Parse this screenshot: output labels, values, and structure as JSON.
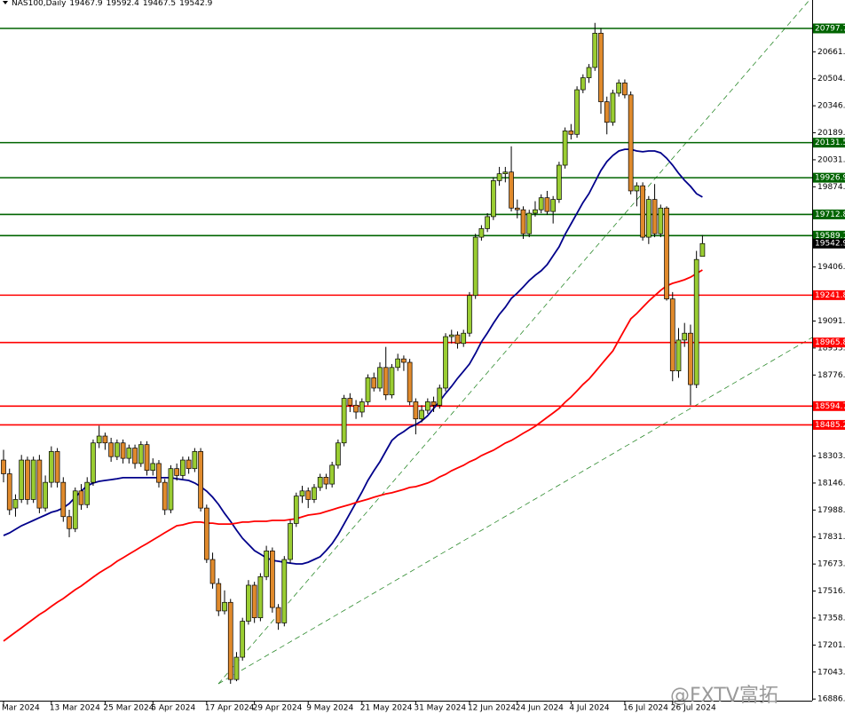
{
  "chart_data": {
    "type": "candlestick",
    "symbol": "NAS100,Daily",
    "watermark": "@FXTV富拓",
    "up_color": "#9acd32",
    "down_color": "#e08a2c",
    "ylim": [
      16876.5,
      20963.5
    ],
    "yticks": [
      {
        "value": 16886,
        "label": "16886.0"
      },
      17043.5,
      {
        "value": 17201,
        "label": "17201.0"
      },
      17358.5,
      {
        "value": 17516,
        "label": "17516.0"
      },
      17673.5,
      {
        "value": 17831,
        "label": "17831.0"
      },
      17988.5,
      {
        "value": 18146,
        "label": "18146.0"
      },
      18303.5,
      {
        "value": 18776,
        "label": "18776.0"
      },
      18933.5,
      {
        "value": 19091,
        "label": "19091.0"
      },
      {
        "value": 19406,
        "label": "19406.0"
      },
      {
        "value": 19874,
        "label": "19874.0"
      },
      20031.5,
      {
        "value": 20189,
        "label": "20189.0"
      },
      20346.5,
      {
        "value": 20504,
        "label": "20504.0"
      },
      20661.5
    ],
    "levels": [
      {
        "value": 20797.7,
        "color": "#006400"
      },
      {
        "value": 20131.5,
        "color": "#006400"
      },
      {
        "value": 19926.9,
        "color": "#006400"
      },
      {
        "value": 19712.8,
        "color": "#006400"
      },
      {
        "value": 19589.1,
        "color": "#006400"
      },
      {
        "value": 19241.8,
        "color": "#ff0000"
      },
      {
        "value": 18965.8,
        "color": "#ff0000"
      },
      {
        "value": 18594.7,
        "color": "#ff0000"
      },
      {
        "value": 18485.2,
        "color": "#ff0000"
      }
    ],
    "categories": [
      "Mar 2024",
      null,
      null,
      null,
      null,
      null,
      null,
      null,
      "13 Mar 2024",
      null,
      null,
      null,
      null,
      null,
      null,
      null,
      null,
      "25 Mar 2024",
      null,
      null,
      null,
      null,
      null,
      null,
      null,
      "5 Apr 2024",
      null,
      null,
      null,
      null,
      null,
      null,
      null,
      null,
      "17 Apr 2024",
      null,
      null,
      null,
      null,
      null,
      null,
      null,
      "29 Apr 2024",
      null,
      null,
      null,
      null,
      null,
      null,
      null,
      null,
      "9 May 2024",
      null,
      null,
      null,
      null,
      null,
      null,
      null,
      null,
      "21 May 2024",
      null,
      null,
      null,
      null,
      null,
      null,
      null,
      null,
      "31 May 2024",
      null,
      null,
      null,
      null,
      null,
      null,
      null,
      null,
      "12 Jun 2024",
      null,
      null,
      null,
      null,
      null,
      null,
      null,
      "24 Jun 2024",
      null,
      null,
      null,
      null,
      null,
      null,
      null,
      null,
      "4 Jul 2024",
      null,
      null,
      null,
      null,
      null,
      null,
      null,
      null,
      "16 Jul 2024",
      null,
      null,
      null,
      null,
      null,
      null,
      null,
      "26 Jul 2024",
      null,
      null,
      null,
      null,
      null
    ],
    "candles": [
      [
        18280,
        18340,
        18150,
        18200
      ],
      [
        18200,
        18230,
        17960,
        17990
      ],
      [
        18000,
        18080,
        17950,
        18050
      ],
      [
        18050,
        18310,
        18030,
        18280
      ],
      [
        18280,
        18300,
        18020,
        18050
      ],
      [
        18050,
        18300,
        18030,
        18280
      ],
      [
        18280,
        18310,
        17970,
        18000
      ],
      [
        18000,
        18190,
        17980,
        18150
      ],
      [
        18150,
        18360,
        18120,
        18330
      ],
      [
        18330,
        18350,
        18120,
        18150
      ],
      [
        18150,
        18180,
        17920,
        17950
      ],
      [
        17950,
        17990,
        17830,
        17880
      ],
      [
        17880,
        18120,
        17860,
        18100
      ],
      [
        18100,
        18140,
        17990,
        18020
      ],
      [
        18020,
        18180,
        18000,
        18150
      ],
      [
        18150,
        18400,
        18130,
        18380
      ],
      [
        18380,
        18480,
        18350,
        18420
      ],
      [
        18420,
        18440,
        18340,
        18380
      ],
      [
        18380,
        18410,
        18270,
        18300
      ],
      [
        18300,
        18400,
        18280,
        18380
      ],
      [
        18380,
        18400,
        18260,
        18290
      ],
      [
        18290,
        18370,
        18260,
        18350
      ],
      [
        18350,
        18370,
        18230,
        18260
      ],
      [
        18260,
        18390,
        18240,
        18370
      ],
      [
        18370,
        18390,
        18190,
        18220
      ],
      [
        18220,
        18290,
        18190,
        18260
      ],
      [
        18260,
        18280,
        18120,
        18150
      ],
      [
        18150,
        18170,
        17960,
        17990
      ],
      [
        17990,
        18250,
        17970,
        18230
      ],
      [
        18230,
        18260,
        18160,
        18190
      ],
      [
        18190,
        18300,
        18170,
        18280
      ],
      [
        18280,
        18300,
        18200,
        18230
      ],
      [
        18230,
        18350,
        18210,
        18330
      ],
      [
        18330,
        18350,
        17980,
        18000
      ],
      [
        18000,
        18020,
        17680,
        17700
      ],
      [
        17700,
        17740,
        17530,
        17560
      ],
      [
        17560,
        17590,
        17370,
        17400
      ],
      [
        17400,
        17520,
        17380,
        17450
      ],
      [
        17450,
        17470,
        16975,
        17000
      ],
      [
        17000,
        17160,
        16990,
        17130
      ],
      [
        17130,
        17360,
        17110,
        17340
      ],
      [
        17340,
        17580,
        17320,
        17550
      ],
      [
        17550,
        17570,
        17330,
        17360
      ],
      [
        17360,
        17620,
        17340,
        17600
      ],
      [
        17600,
        17780,
        17580,
        17750
      ],
      [
        17750,
        17770,
        17390,
        17420
      ],
      [
        17420,
        17440,
        17290,
        17330
      ],
      [
        17330,
        17720,
        17310,
        17700
      ],
      [
        17700,
        17930,
        17680,
        17910
      ],
      [
        17910,
        18090,
        17890,
        18070
      ],
      [
        18070,
        18130,
        18030,
        18100
      ],
      [
        18100,
        18120,
        18000,
        18050
      ],
      [
        18050,
        18140,
        18030,
        18120
      ],
      [
        18120,
        18200,
        18100,
        18180
      ],
      [
        18180,
        18200,
        18110,
        18140
      ],
      [
        18140,
        18270,
        18120,
        18250
      ],
      [
        18250,
        18400,
        18230,
        18380
      ],
      [
        18380,
        18660,
        18360,
        18640
      ],
      [
        18640,
        18670,
        18560,
        18600
      ],
      [
        18600,
        18630,
        18520,
        18560
      ],
      [
        18560,
        18640,
        18530,
        18620
      ],
      [
        18620,
        18780,
        18600,
        18760
      ],
      [
        18760,
        18790,
        18680,
        18700
      ],
      [
        18700,
        18850,
        18680,
        18820
      ],
      [
        18820,
        18940,
        18630,
        18660
      ],
      [
        18660,
        18840,
        18640,
        18820
      ],
      [
        18820,
        18900,
        18800,
        18870
      ],
      [
        18870,
        18890,
        18800,
        18850
      ],
      [
        18850,
        18870,
        18600,
        18620
      ],
      [
        18620,
        18640,
        18430,
        18520
      ],
      [
        18520,
        18600,
        18500,
        18570
      ],
      [
        18570,
        18640,
        18550,
        18620
      ],
      [
        18620,
        18650,
        18560,
        18600
      ],
      [
        18600,
        18720,
        18580,
        18700
      ],
      [
        18700,
        19020,
        18680,
        19000
      ],
      [
        19000,
        19040,
        18960,
        19010
      ],
      [
        19010,
        19030,
        18930,
        18960
      ],
      [
        18960,
        19040,
        18940,
        19020
      ],
      [
        19020,
        19260,
        19000,
        19240
      ],
      [
        19240,
        19600,
        19220,
        19580
      ],
      [
        19580,
        19650,
        19560,
        19630
      ],
      [
        19630,
        19720,
        19610,
        19700
      ],
      [
        19700,
        19930,
        19680,
        19910
      ],
      [
        19910,
        19990,
        19880,
        19950
      ],
      [
        19950,
        19990,
        19900,
        19960
      ],
      [
        19960,
        20110,
        19730,
        19750
      ],
      [
        19750,
        19800,
        19690,
        19740
      ],
      [
        19740,
        19760,
        19570,
        19600
      ],
      [
        19600,
        19740,
        19580,
        19720
      ],
      [
        19720,
        19790,
        19700,
        19740
      ],
      [
        19740,
        19830,
        19720,
        19810
      ],
      [
        19810,
        19850,
        19710,
        19730
      ],
      [
        19730,
        19820,
        19660,
        19800
      ],
      [
        19800,
        20020,
        19780,
        20000
      ],
      [
        20000,
        20220,
        19980,
        20200
      ],
      [
        20200,
        20240,
        20150,
        20180
      ],
      [
        20180,
        20460,
        20160,
        20440
      ],
      [
        20440,
        20530,
        20420,
        20510
      ],
      [
        20510,
        20590,
        20480,
        20570
      ],
      [
        20570,
        20830,
        20550,
        20770
      ],
      [
        20770,
        20800,
        20300,
        20370
      ],
      [
        20370,
        20400,
        20180,
        20250
      ],
      [
        20250,
        20440,
        20230,
        20420
      ],
      [
        20420,
        20500,
        20400,
        20480
      ],
      [
        20480,
        20500,
        20390,
        20410
      ],
      [
        20410,
        20430,
        19830,
        19850
      ],
      [
        19850,
        19900,
        19760,
        19880
      ],
      [
        19880,
        19900,
        19560,
        19580
      ],
      [
        19580,
        19820,
        19540,
        19800
      ],
      [
        19800,
        19890,
        19580,
        19600
      ],
      [
        19600,
        19770,
        19580,
        19750
      ],
      [
        19750,
        19760,
        19210,
        19220
      ],
      [
        19220,
        19260,
        18740,
        18800
      ],
      [
        18800,
        19050,
        18760,
        18980
      ],
      [
        18980,
        19080,
        18940,
        19020
      ],
      [
        19020,
        19070,
        18600,
        18720
      ],
      [
        18720,
        19500,
        18700,
        19450
      ],
      [
        19467.9,
        19592.4,
        19467.5,
        19542.9
      ]
    ],
    "series": [
      {
        "color": "#00008b",
        "values": [
          17840,
          17855,
          17876,
          17897,
          17912,
          17928,
          17944,
          17959,
          17975,
          17985,
          18001,
          18026,
          18063,
          18099,
          18130,
          18146,
          18156,
          18161,
          18166,
          18171,
          18177,
          18177,
          18177,
          18177,
          18177,
          18177,
          18177,
          18177,
          18177,
          18171,
          18166,
          18161,
          18146,
          18125,
          18099,
          18063,
          18021,
          17969,
          17923,
          17871,
          17824,
          17788,
          17752,
          17731,
          17710,
          17695,
          17690,
          17684,
          17679,
          17674,
          17674,
          17684,
          17700,
          17716,
          17752,
          17793,
          17845,
          17907,
          17969,
          18032,
          18094,
          18161,
          18218,
          18270,
          18332,
          18394,
          18425,
          18446,
          18472,
          18487,
          18508,
          18539,
          18581,
          18622,
          18669,
          18710,
          18757,
          18798,
          18840,
          18902,
          18969,
          19021,
          19078,
          19130,
          19171,
          19223,
          19254,
          19290,
          19327,
          19358,
          19384,
          19420,
          19472,
          19524,
          19596,
          19658,
          19720,
          19782,
          19834,
          19902,
          19969,
          20021,
          20057,
          20083,
          20093,
          20093,
          20083,
          20078,
          20083,
          20083,
          20072,
          20041,
          20000,
          19953,
          19912,
          19876,
          19834,
          19814
        ]
      },
      {
        "color": "#ff0000",
        "values": [
          17224,
          17250,
          17276,
          17301,
          17327,
          17353,
          17379,
          17400,
          17426,
          17451,
          17472,
          17498,
          17524,
          17545,
          17571,
          17597,
          17622,
          17643,
          17664,
          17690,
          17710,
          17731,
          17752,
          17773,
          17793,
          17814,
          17835,
          17856,
          17876,
          17897,
          17902,
          17912,
          17918,
          17918,
          17912,
          17912,
          17907,
          17907,
          17907,
          17912,
          17918,
          17918,
          17923,
          17923,
          17923,
          17928,
          17928,
          17928,
          17933,
          17938,
          17949,
          17959,
          17964,
          17969,
          17980,
          17990,
          18001,
          18011,
          18021,
          18032,
          18042,
          18052,
          18063,
          18073,
          18083,
          18089,
          18099,
          18109,
          18120,
          18125,
          18135,
          18146,
          18161,
          18182,
          18197,
          18218,
          18234,
          18249,
          18270,
          18285,
          18306,
          18322,
          18337,
          18358,
          18379,
          18394,
          18415,
          18436,
          18456,
          18477,
          18503,
          18529,
          18555,
          18581,
          18617,
          18648,
          18684,
          18721,
          18752,
          18793,
          18835,
          18876,
          18917,
          18980,
          19042,
          19104,
          19135,
          19171,
          19207,
          19239,
          19270,
          19296,
          19311,
          19321,
          19332,
          19347,
          19368,
          19389
        ]
      }
    ]
  }
}
